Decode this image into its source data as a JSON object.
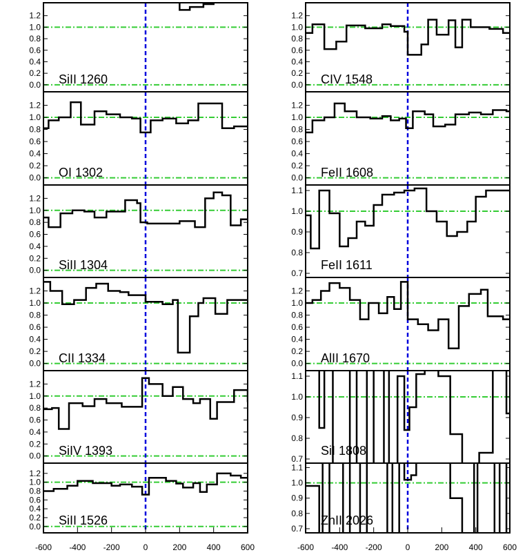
{
  "chart_data": {
    "type": "line",
    "description_axis": "velocity",
    "xlim": [
      -600,
      600
    ],
    "x_ticks": [
      "-600",
      "-400",
      "-200",
      "0",
      "200",
      "400",
      "600"
    ],
    "reference_lines": {
      "flux_continuum": 1.0,
      "flux_zero": 0.0,
      "velocity_zero": 0
    },
    "colors": {
      "spectrum": "#000000",
      "continuum_line": "#33cc33",
      "velocity_zero_line": "#0000dd"
    },
    "panels": [
      {
        "id": "siII-1260",
        "label": "SiII 1260",
        "column": 0,
        "row": 0,
        "ylim": [
          -0.05,
          1.4
        ],
        "y_ticks": [
          "0.0",
          "0.2",
          "0.4",
          "0.6",
          "0.8",
          "1.0",
          "1.2"
        ],
        "steps": [
          [
            -600,
            1.6
          ],
          [
            -500,
            1.6
          ],
          [
            -400,
            1.6
          ],
          [
            -300,
            1.6
          ],
          [
            -200,
            1.6
          ],
          [
            -100,
            1.6
          ],
          [
            0,
            1.6
          ],
          [
            100,
            1.6
          ],
          [
            200,
            1.3
          ],
          [
            260,
            1.35
          ],
          [
            340,
            1.4
          ],
          [
            400,
            1.6
          ],
          [
            500,
            1.6
          ]
        ]
      },
      {
        "id": "civ-1548",
        "label": "CIV 1548",
        "column": 1,
        "row": 0,
        "ylim": [
          -0.05,
          1.4
        ],
        "y_ticks": [
          "0.0",
          "0.2",
          "0.4",
          "0.6",
          "0.8",
          "1.0",
          "1.2"
        ],
        "steps": [
          [
            -600,
            0.9
          ],
          [
            -560,
            1.05
          ],
          [
            -490,
            0.62
          ],
          [
            -420,
            0.75
          ],
          [
            -360,
            1.03
          ],
          [
            -250,
            0.98
          ],
          [
            -150,
            1.05
          ],
          [
            -100,
            1.02
          ],
          [
            -20,
            0.92
          ],
          [
            0,
            0.52
          ],
          [
            80,
            0.7
          ],
          [
            120,
            1.13
          ],
          [
            170,
            0.87
          ],
          [
            240,
            1.12
          ],
          [
            280,
            0.65
          ],
          [
            320,
            1.13
          ],
          [
            370,
            1.0
          ],
          [
            480,
            0.97
          ],
          [
            560,
            0.9
          ],
          [
            600,
            0.9
          ]
        ]
      },
      {
        "id": "oi-1302",
        "label": "OI 1302",
        "column": 0,
        "row": 1,
        "ylim": [
          -0.05,
          1.4
        ],
        "y_ticks": [
          "0.0",
          "0.2",
          "0.4",
          "0.6",
          "0.8",
          "1.0",
          "1.2"
        ],
        "steps": [
          [
            -600,
            0.82
          ],
          [
            -570,
            0.95
          ],
          [
            -510,
            1.0
          ],
          [
            -440,
            1.25
          ],
          [
            -380,
            0.88
          ],
          [
            -300,
            1.1
          ],
          [
            -230,
            1.05
          ],
          [
            -150,
            1.0
          ],
          [
            -80,
            0.98
          ],
          [
            -30,
            0.75
          ],
          [
            30,
            0.95
          ],
          [
            100,
            0.98
          ],
          [
            180,
            0.9
          ],
          [
            250,
            0.95
          ],
          [
            310,
            1.23
          ],
          [
            450,
            0.82
          ],
          [
            520,
            0.85
          ],
          [
            600,
            0.85
          ]
        ]
      },
      {
        "id": "feii-1608",
        "label": "FeII 1608",
        "column": 1,
        "row": 1,
        "ylim": [
          -0.05,
          1.4
        ],
        "y_ticks": [
          "0.0",
          "0.2",
          "0.4",
          "0.6",
          "0.8",
          "1.0",
          "1.2"
        ],
        "steps": [
          [
            -600,
            0.75
          ],
          [
            -560,
            0.95
          ],
          [
            -490,
            1.0
          ],
          [
            -430,
            1.23
          ],
          [
            -370,
            1.1
          ],
          [
            -300,
            1.0
          ],
          [
            -220,
            0.98
          ],
          [
            -150,
            1.02
          ],
          [
            -100,
            0.95
          ],
          [
            -50,
            0.98
          ],
          [
            -10,
            0.82
          ],
          [
            30,
            1.1
          ],
          [
            100,
            1.05
          ],
          [
            150,
            0.85
          ],
          [
            220,
            0.88
          ],
          [
            280,
            1.05
          ],
          [
            360,
            1.08
          ],
          [
            430,
            1.05
          ],
          [
            500,
            1.12
          ],
          [
            580,
            1.1
          ],
          [
            600,
            1.1
          ]
        ]
      },
      {
        "id": "siII-1304",
        "label": "SiII 1304",
        "column": 0,
        "row": 2,
        "ylim": [
          -0.05,
          1.4
        ],
        "y_ticks": [
          "0.0",
          "0.2",
          "0.4",
          "0.6",
          "0.8",
          "1.0",
          "1.2"
        ],
        "steps": [
          [
            -600,
            0.88
          ],
          [
            -570,
            0.72
          ],
          [
            -500,
            0.95
          ],
          [
            -430,
            1.0
          ],
          [
            -360,
            0.98
          ],
          [
            -300,
            0.88
          ],
          [
            -230,
            0.98
          ],
          [
            -120,
            1.17
          ],
          [
            -50,
            1.12
          ],
          [
            -30,
            0.8
          ],
          [
            10,
            0.78
          ],
          [
            200,
            0.82
          ],
          [
            290,
            0.72
          ],
          [
            350,
            1.2
          ],
          [
            400,
            1.3
          ],
          [
            450,
            1.25
          ],
          [
            500,
            0.75
          ],
          [
            560,
            0.85
          ],
          [
            600,
            0.85
          ]
        ]
      },
      {
        "id": "feii-1611",
        "label": "FeII 1611",
        "column": 1,
        "row": 2,
        "ylim": [
          0.7,
          1.12
        ],
        "y_ticks": [
          "0.7",
          "0.8",
          "0.9",
          "1.0",
          "1.1"
        ],
        "steps": [
          [
            -600,
            0.98
          ],
          [
            -570,
            0.82
          ],
          [
            -520,
            1.1
          ],
          [
            -460,
            0.99
          ],
          [
            -400,
            0.83
          ],
          [
            -350,
            0.87
          ],
          [
            -300,
            0.95
          ],
          [
            -250,
            0.93
          ],
          [
            -200,
            1.03
          ],
          [
            -150,
            1.08
          ],
          [
            -80,
            1.09
          ],
          [
            -20,
            1.1
          ],
          [
            0,
            1.1
          ],
          [
            40,
            1.11
          ],
          [
            110,
            1.0
          ],
          [
            170,
            0.95
          ],
          [
            230,
            0.88
          ],
          [
            290,
            0.9
          ],
          [
            350,
            0.95
          ],
          [
            400,
            1.07
          ],
          [
            460,
            1.1
          ],
          [
            530,
            1.1
          ],
          [
            600,
            1.1
          ]
        ]
      },
      {
        "id": "cii-1334",
        "label": "CII 1334",
        "column": 0,
        "row": 3,
        "ylim": [
          -0.05,
          1.4
        ],
        "y_ticks": [
          "0.0",
          "0.2",
          "0.4",
          "0.6",
          "0.8",
          "1.0",
          "1.2"
        ],
        "steps": [
          [
            -600,
            1.35
          ],
          [
            -560,
            1.2
          ],
          [
            -490,
            0.98
          ],
          [
            -420,
            1.05
          ],
          [
            -350,
            1.25
          ],
          [
            -290,
            1.32
          ],
          [
            -220,
            1.2
          ],
          [
            -150,
            1.18
          ],
          [
            -100,
            1.13
          ],
          [
            0,
            1.02
          ],
          [
            100,
            0.98
          ],
          [
            160,
            1.05
          ],
          [
            190,
            0.18
          ],
          [
            260,
            0.78
          ],
          [
            310,
            1.0
          ],
          [
            340,
            1.08
          ],
          [
            410,
            0.82
          ],
          [
            480,
            1.05
          ],
          [
            560,
            1.05
          ],
          [
            600,
            1.05
          ]
        ]
      },
      {
        "id": "alii-1670",
        "label": "AlII 1670",
        "column": 1,
        "row": 3,
        "ylim": [
          -0.05,
          1.4
        ],
        "y_ticks": [
          "0.0",
          "0.2",
          "0.4",
          "0.6",
          "0.8",
          "1.0",
          "1.2"
        ],
        "steps": [
          [
            -600,
            1.0
          ],
          [
            -560,
            1.05
          ],
          [
            -510,
            1.2
          ],
          [
            -460,
            1.33
          ],
          [
            -400,
            1.25
          ],
          [
            -340,
            1.05
          ],
          [
            -280,
            0.73
          ],
          [
            -230,
            1.0
          ],
          [
            -170,
            0.83
          ],
          [
            -120,
            1.1
          ],
          [
            -80,
            0.9
          ],
          [
            -40,
            1.35
          ],
          [
            0,
            0.73
          ],
          [
            60,
            0.65
          ],
          [
            120,
            0.55
          ],
          [
            180,
            0.73
          ],
          [
            240,
            0.25
          ],
          [
            300,
            0.95
          ],
          [
            360,
            1.15
          ],
          [
            430,
            1.22
          ],
          [
            470,
            0.78
          ],
          [
            560,
            0.73
          ],
          [
            600,
            0.73
          ]
        ]
      },
      {
        "id": "siiv-1393",
        "label": "SiIV 1393",
        "column": 0,
        "row": 4,
        "ylim": [
          -0.05,
          1.4
        ],
        "y_ticks": [
          "0.0",
          "0.2",
          "0.4",
          "0.6",
          "0.8",
          "1.0",
          "1.2"
        ],
        "steps": [
          [
            -600,
            0.78
          ],
          [
            -550,
            0.8
          ],
          [
            -510,
            0.45
          ],
          [
            -450,
            0.88
          ],
          [
            -370,
            0.83
          ],
          [
            -300,
            0.95
          ],
          [
            -230,
            0.88
          ],
          [
            -140,
            0.82
          ],
          [
            -20,
            1.3
          ],
          [
            20,
            1.2
          ],
          [
            100,
            1.0
          ],
          [
            160,
            1.15
          ],
          [
            220,
            0.95
          ],
          [
            280,
            0.88
          ],
          [
            320,
            0.95
          ],
          [
            380,
            0.62
          ],
          [
            420,
            0.9
          ],
          [
            520,
            1.1
          ],
          [
            600,
            0.9
          ]
        ]
      },
      {
        "id": "sii-1808",
        "label": "SiI 1808",
        "column": 1,
        "row": 4,
        "ylim": [
          0.7,
          1.12
        ],
        "y_ticks": [
          "0.7",
          "0.8",
          "0.9",
          "1.0",
          "1.1"
        ],
        "steps": [
          [
            -600,
            1.3
          ],
          [
            -520,
            0.85
          ],
          [
            -490,
            1.3
          ],
          [
            -440,
            0.6
          ],
          [
            -340,
            1.3
          ],
          [
            -300,
            0.6
          ],
          [
            -240,
            1.3
          ],
          [
            -200,
            0.6
          ],
          [
            -140,
            1.3
          ],
          [
            -110,
            0.6
          ],
          [
            -60,
            1.1
          ],
          [
            -20,
            0.84
          ],
          [
            10,
            0.95
          ],
          [
            50,
            1.11
          ],
          [
            100,
            1.3
          ],
          [
            180,
            1.1
          ],
          [
            250,
            0.82
          ],
          [
            320,
            0.55
          ],
          [
            420,
            0.73
          ],
          [
            500,
            1.3
          ],
          [
            580,
            0.92
          ],
          [
            600,
            0.92
          ]
        ]
      },
      {
        "id": "siII-1526",
        "label": "SiII 1526",
        "column": 0,
        "row": 5,
        "ylim": [
          -0.05,
          1.4
        ],
        "y_ticks": [
          "0.0",
          "0.2",
          "0.4",
          "0.6",
          "0.8",
          "1.0",
          "1.2"
        ],
        "steps": [
          [
            -600,
            0.8
          ],
          [
            -540,
            0.85
          ],
          [
            -460,
            0.92
          ],
          [
            -400,
            1.03
          ],
          [
            -310,
            0.98
          ],
          [
            -200,
            0.92
          ],
          [
            -150,
            0.95
          ],
          [
            -80,
            0.9
          ],
          [
            -20,
            0.72
          ],
          [
            20,
            1.1
          ],
          [
            120,
            1.03
          ],
          [
            180,
            0.97
          ],
          [
            220,
            0.88
          ],
          [
            280,
            0.98
          ],
          [
            320,
            0.78
          ],
          [
            360,
            0.95
          ],
          [
            420,
            1.2
          ],
          [
            500,
            1.15
          ],
          [
            560,
            1.1
          ],
          [
            600,
            1.1
          ]
        ]
      },
      {
        "id": "znii-2026",
        "label": "ZnII 2026",
        "column": 1,
        "row": 5,
        "ylim": [
          0.7,
          1.12
        ],
        "y_ticks": [
          "0.7",
          "0.8",
          "0.9",
          "1.0",
          "1.1"
        ],
        "steps": [
          [
            -600,
            0.98
          ],
          [
            -520,
            0.55
          ],
          [
            -500,
            1.3
          ],
          [
            -460,
            0.55
          ],
          [
            -380,
            1.3
          ],
          [
            -340,
            0.55
          ],
          [
            -280,
            1.3
          ],
          [
            -240,
            0.55
          ],
          [
            -120,
            1.3
          ],
          [
            -90,
            0.55
          ],
          [
            -50,
            1.3
          ],
          [
            -20,
            1.02
          ],
          [
            20,
            1.05
          ],
          [
            50,
            1.3
          ],
          [
            100,
            1.3
          ],
          [
            250,
            0.9
          ],
          [
            320,
            0.55
          ],
          [
            390,
            1.3
          ],
          [
            410,
            0.55
          ],
          [
            510,
            1.3
          ],
          [
            540,
            0.55
          ],
          [
            580,
            1.3
          ],
          [
            600,
            1.3
          ]
        ]
      }
    ]
  }
}
